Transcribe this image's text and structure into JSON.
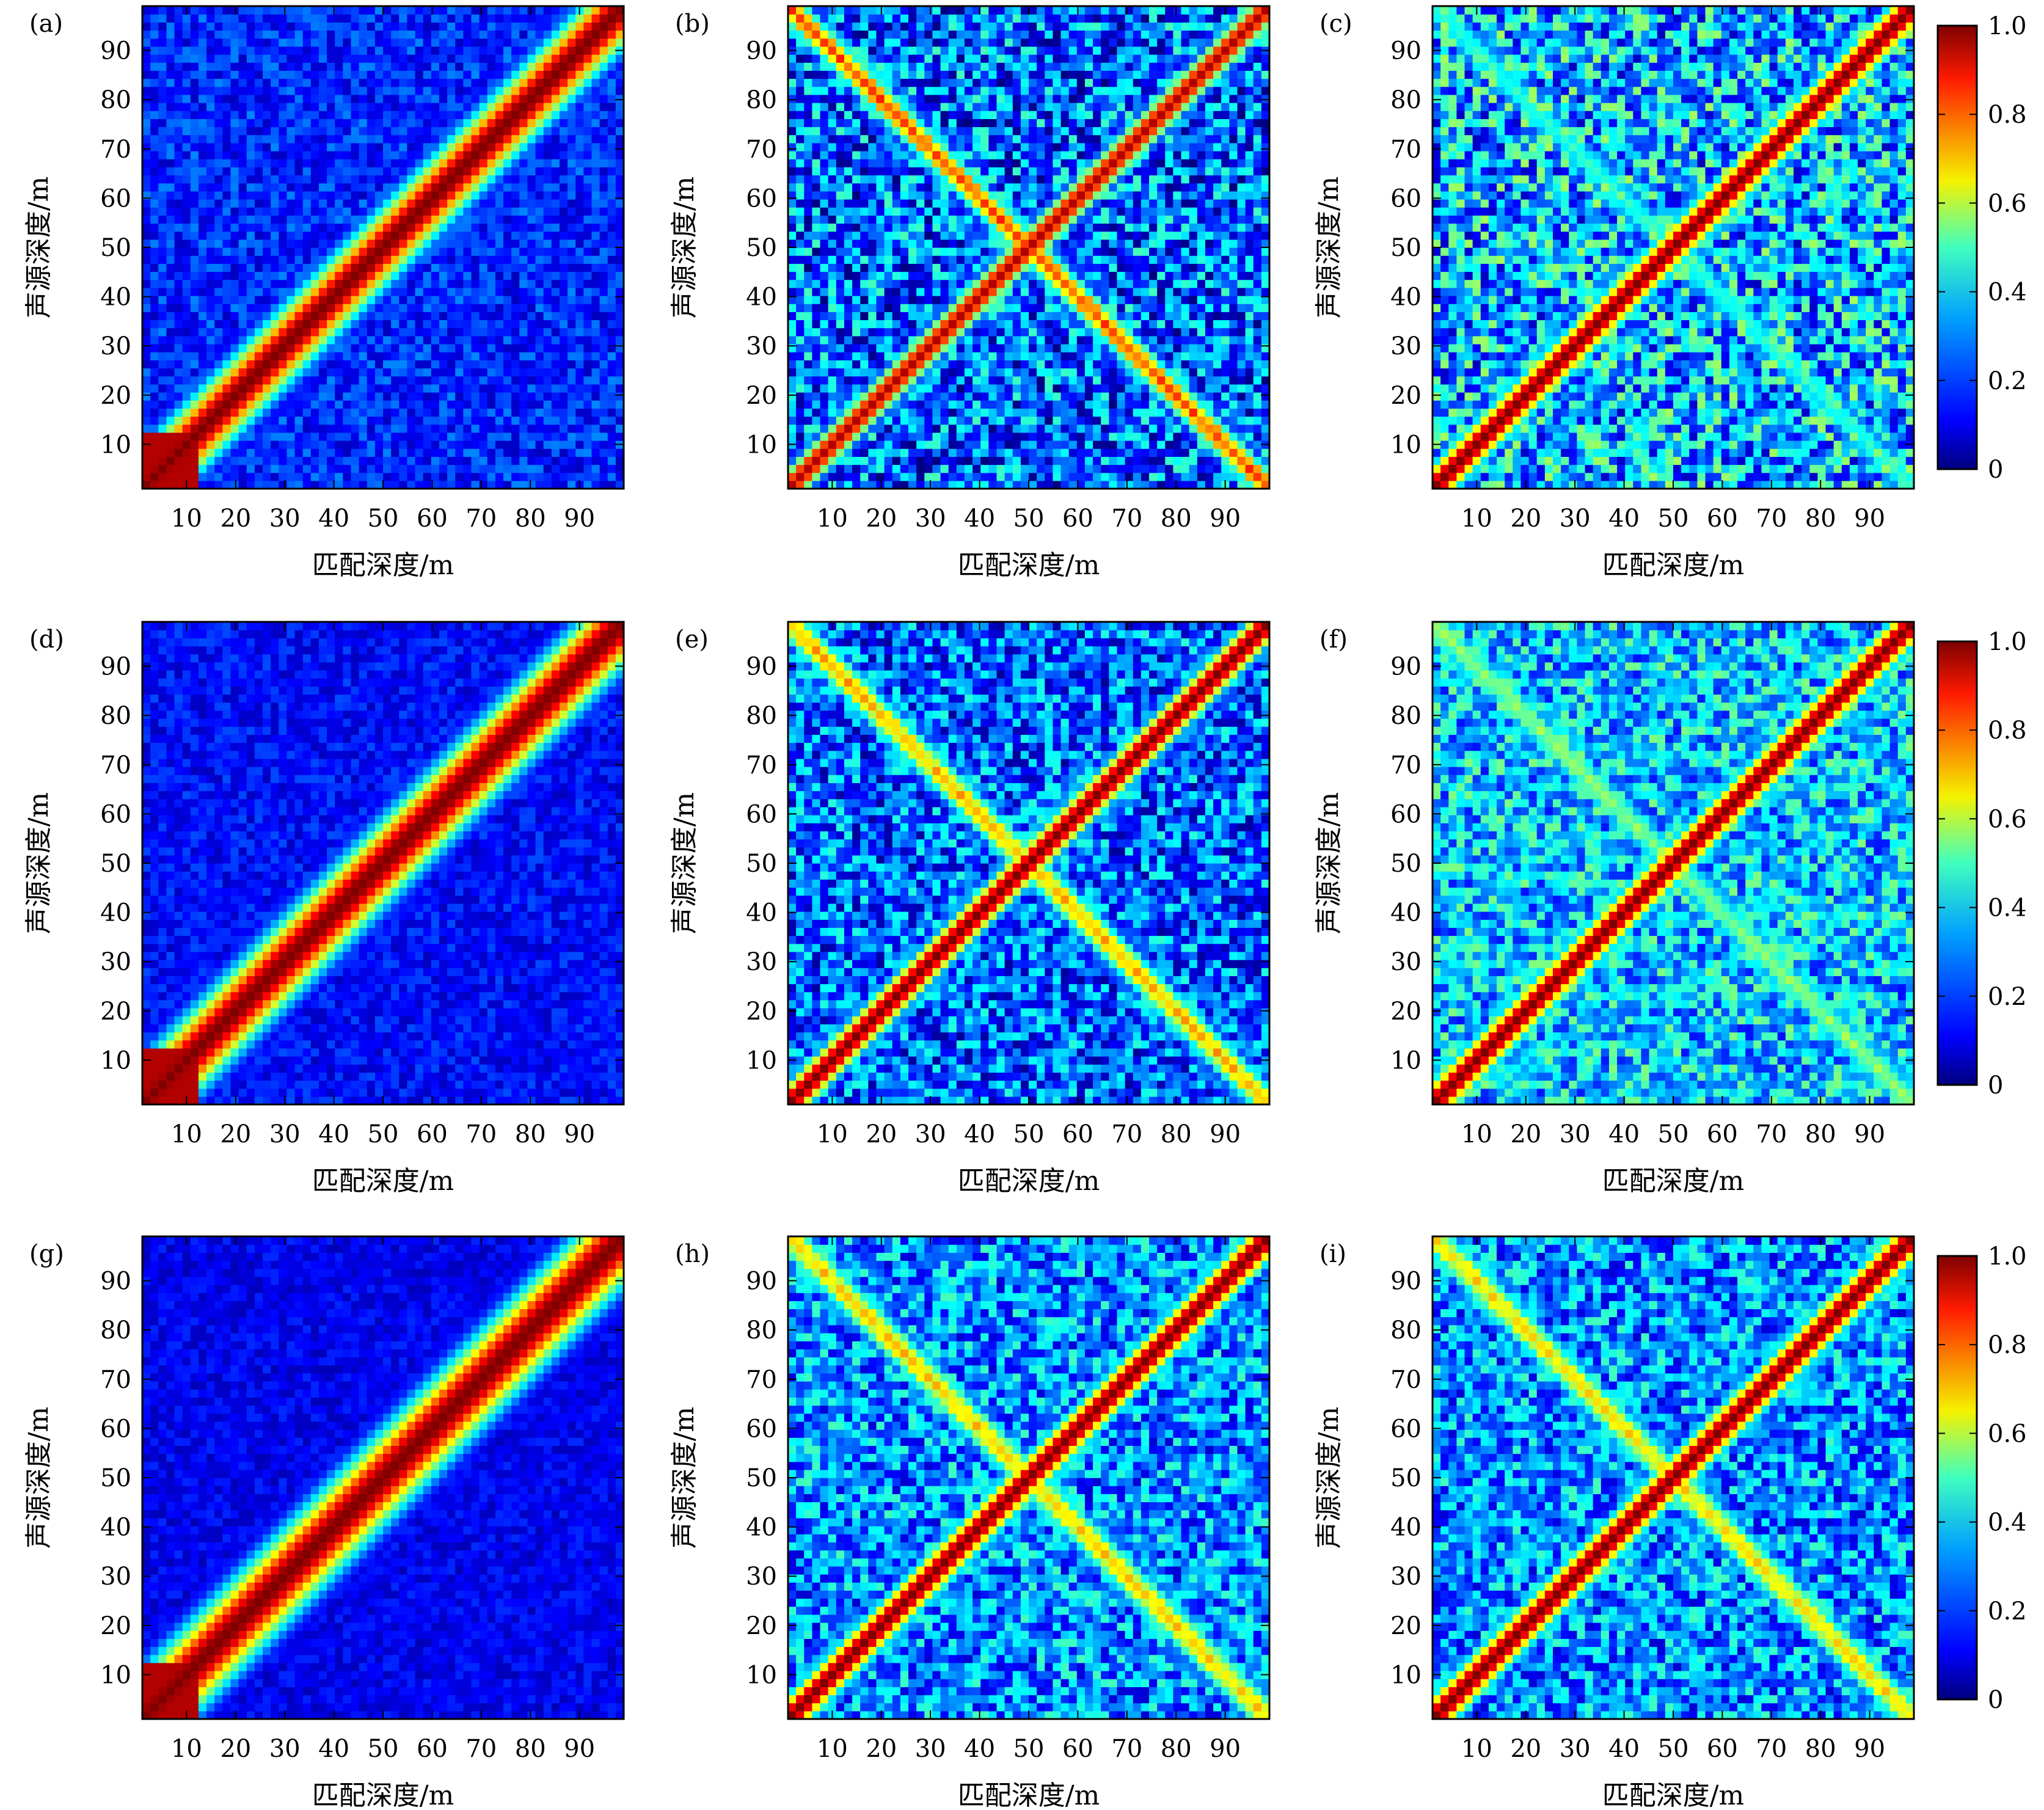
{
  "chart_data": {
    "type": "heatmap",
    "layout": "3x3 grid of heatmap panels with a shared colorbar per row",
    "colormap": "jet",
    "value_range": [
      0,
      1
    ],
    "xlabel": "匹配深度/m",
    "ylabel": "声源深度/m",
    "xlim": [
      1,
      99
    ],
    "ylim": [
      1,
      99
    ],
    "x_ticks": [
      10,
      20,
      30,
      40,
      50,
      60,
      70,
      80,
      90
    ],
    "y_ticks": [
      10,
      20,
      30,
      40,
      50,
      60,
      70,
      80,
      90
    ],
    "x_tick_labels": [
      "10",
      "20",
      "30",
      "40",
      "50",
      "60",
      "70",
      "80",
      "90"
    ],
    "y_tick_labels": [
      "10",
      "20",
      "30",
      "40",
      "50",
      "60",
      "70",
      "80",
      "90"
    ],
    "colorbar": {
      "ticks": [
        0,
        0.2,
        0.4,
        0.6,
        0.8,
        1.0
      ],
      "tick_labels": [
        "0",
        "0.2",
        "0.4",
        "0.6",
        "0.8",
        "1.0"
      ]
    },
    "colors": {
      "low": "#00007f",
      "mid_low": "#0066ff",
      "mid": "#22e8d6",
      "mid_high": "#f5ea00",
      "high": "#ff3500",
      "max": "#7f0000"
    },
    "panels": [
      {
        "label": "(a)",
        "background_level": 0.16,
        "main_diagonal_peak": 1.0,
        "anti_diagonal_peak": 0.0,
        "noise_level": 0.14,
        "main_width": 2.2
      },
      {
        "label": "(b)",
        "background_level": 0.22,
        "main_diagonal_peak": 0.95,
        "anti_diagonal_peak": 0.85,
        "noise_level": 0.32,
        "main_width": 1.1
      },
      {
        "label": "(c)",
        "background_level": 0.3,
        "main_diagonal_peak": 1.0,
        "anti_diagonal_peak": 0.45,
        "noise_level": 0.34,
        "main_width": 1.3
      },
      {
        "label": "(d)",
        "background_level": 0.13,
        "main_diagonal_peak": 1.0,
        "anti_diagonal_peak": 0.0,
        "noise_level": 0.1,
        "main_width": 2.4
      },
      {
        "label": "(e)",
        "background_level": 0.22,
        "main_diagonal_peak": 1.0,
        "anti_diagonal_peak": 0.75,
        "noise_level": 0.28,
        "main_width": 1.2
      },
      {
        "label": "(f)",
        "background_level": 0.32,
        "main_diagonal_peak": 1.0,
        "anti_diagonal_peak": 0.55,
        "noise_level": 0.26,
        "main_width": 1.3
      },
      {
        "label": "(g)",
        "background_level": 0.11,
        "main_diagonal_peak": 1.0,
        "anti_diagonal_peak": 0.0,
        "noise_level": 0.08,
        "main_width": 2.6
      },
      {
        "label": "(h)",
        "background_level": 0.26,
        "main_diagonal_peak": 1.0,
        "anti_diagonal_peak": 0.72,
        "noise_level": 0.26,
        "main_width": 1.3
      },
      {
        "label": "(i)",
        "background_level": 0.26,
        "main_diagonal_peak": 1.0,
        "anti_diagonal_peak": 0.7,
        "noise_level": 0.26,
        "main_width": 1.3
      }
    ]
  }
}
